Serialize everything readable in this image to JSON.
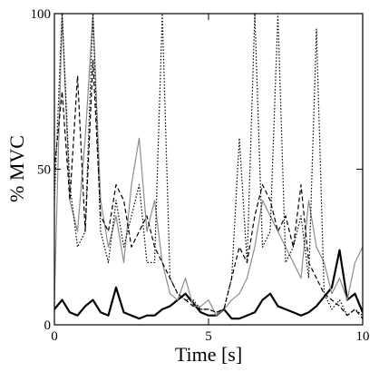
{
  "chart_data": {
    "type": "line",
    "x_label": "Time [s]",
    "y_label": "% MVC",
    "x": [
      0,
      0.25,
      0.5,
      0.75,
      1,
      1.25,
      1.5,
      1.75,
      2,
      2.25,
      2.5,
      2.75,
      3,
      3.25,
      3.5,
      3.75,
      4,
      4.25,
      4.5,
      4.75,
      5,
      5.25,
      5.5,
      5.75,
      6,
      6.25,
      6.5,
      6.75,
      7,
      7.25,
      7.5,
      7.75,
      8,
      8.25,
      8.5,
      8.75,
      9,
      9.25,
      9.5,
      9.75,
      10
    ],
    "series": [
      {
        "color": "#000000",
        "line_style": "solid",
        "line_width": 2.2,
        "values": [
          5,
          8,
          4,
          3,
          6,
          8,
          4,
          3,
          12,
          4,
          3,
          2,
          3,
          3,
          5,
          6,
          8,
          10,
          7,
          4,
          3,
          3,
          5,
          2,
          2,
          3,
          4,
          8,
          10,
          6,
          5,
          4,
          3,
          4,
          6,
          9,
          12,
          24,
          8,
          10,
          4
        ]
      },
      {
        "color": "#8c8c8c",
        "line_style": "solid",
        "line_width": 1.2,
        "values": [
          8,
          100,
          40,
          30,
          60,
          100,
          40,
          25,
          35,
          20,
          45,
          60,
          30,
          40,
          20,
          10,
          8,
          15,
          6,
          6,
          8,
          3,
          5,
          8,
          10,
          15,
          25,
          40,
          35,
          30,
          25,
          20,
          15,
          40,
          25,
          20,
          10,
          15,
          8,
          20,
          25
        ]
      },
      {
        "color": "#000000",
        "line_style": "dotted",
        "line_width": 1.2,
        "values": [
          40,
          100,
          45,
          25,
          30,
          100,
          30,
          20,
          40,
          25,
          35,
          45,
          20,
          20,
          100,
          15,
          10,
          8,
          8,
          5,
          5,
          4,
          5,
          15,
          60,
          20,
          100,
          25,
          30,
          100,
          20,
          25,
          35,
          15,
          95,
          10,
          5,
          8,
          3,
          5,
          3
        ]
      },
      {
        "color": "#000000",
        "line_style": "dashed",
        "line_width": 1.2,
        "values": [
          50,
          75,
          40,
          80,
          30,
          85,
          35,
          30,
          45,
          40,
          25,
          30,
          35,
          25,
          20,
          15,
          10,
          8,
          6,
          5,
          5,
          4,
          5,
          15,
          25,
          20,
          35,
          45,
          40,
          30,
          35,
          25,
          45,
          20,
          15,
          10,
          8,
          6,
          3,
          5,
          2
        ]
      }
    ],
    "xlim": [
      0,
      10
    ],
    "xticks": [
      0,
      5,
      10
    ],
    "ylim": [
      0,
      100
    ],
    "yticks": [
      0,
      50,
      100
    ],
    "grid": false
  }
}
